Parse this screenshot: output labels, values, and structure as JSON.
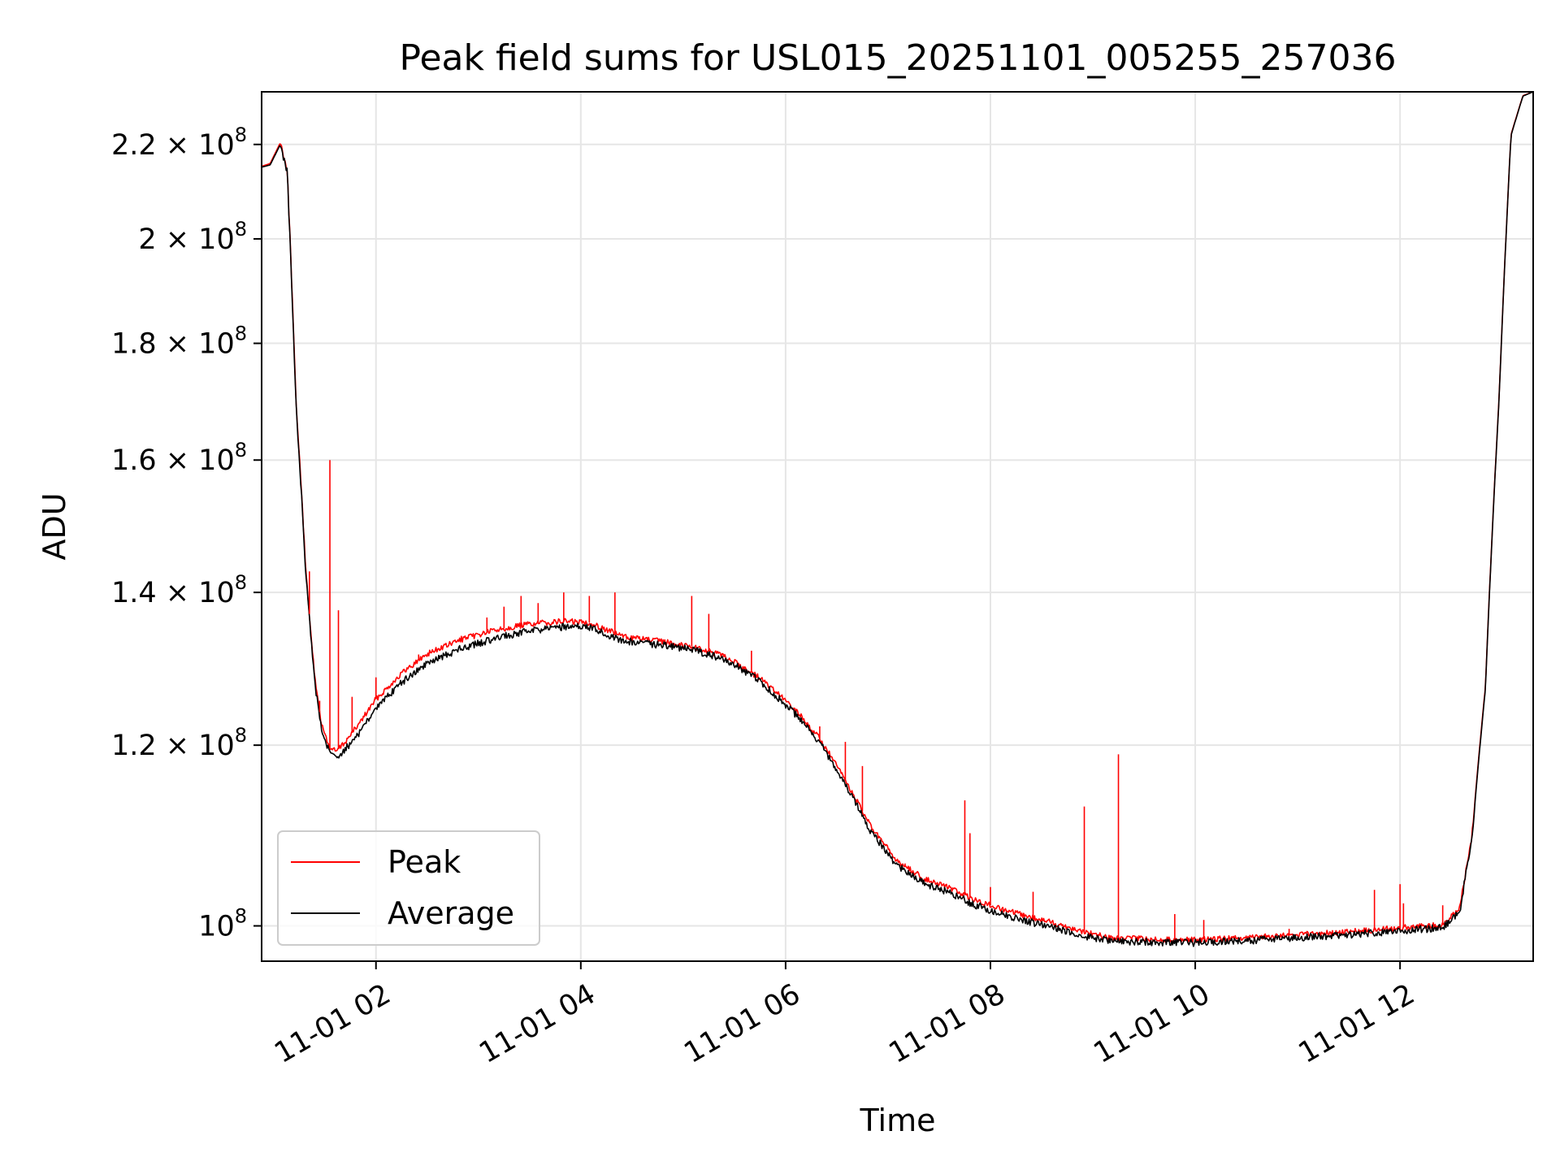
{
  "chart_data": {
    "type": "line",
    "title": "Peak field sums for USL015_20251101_005255_257036",
    "xlabel": "Time",
    "ylabel": "ADU",
    "yscale": "log",
    "xlim": [
      "2025-11-01 00:53",
      "2025-11-01 13:18"
    ],
    "ylim": [
      96500000,
      232000000
    ],
    "grid": true,
    "legend_position": "lower-left",
    "x_ticks": [
      "11-01 02",
      "11-01 04",
      "11-01 06",
      "11-01 08",
      "11-01 10",
      "11-01 12"
    ],
    "x_tick_values": [
      "2025-11-01 02:00",
      "2025-11-01 04:00",
      "2025-11-01 06:00",
      "2025-11-01 08:00",
      "2025-11-01 10:00",
      "2025-11-01 12:00"
    ],
    "y_ticks": [
      {
        "value": 100000000,
        "mant": "",
        "exp": "8"
      },
      {
        "value": 120000000,
        "mant": "1.2",
        "exp": "8"
      },
      {
        "value": 140000000,
        "mant": "1.4",
        "exp": "8"
      },
      {
        "value": 160000000,
        "mant": "1.6",
        "exp": "8"
      },
      {
        "value": 180000000,
        "mant": "1.8",
        "exp": "8"
      },
      {
        "value": 200000000,
        "mant": "2",
        "exp": "8"
      },
      {
        "value": 220000000,
        "mant": "2.2",
        "exp": "8"
      }
    ],
    "series": [
      {
        "name": "Average",
        "color": "#000000",
        "x": [
          "2025-11-01 00:53",
          "2025-11-01 00:58",
          "2025-11-01 01:04",
          "2025-11-01 01:08",
          "2025-11-01 01:13",
          "2025-11-01 01:19",
          "2025-11-01 01:24",
          "2025-11-01 01:28",
          "2025-11-01 01:33",
          "2025-11-01 01:37",
          "2025-11-01 01:42",
          "2025-11-01 01:50",
          "2025-11-01 02:00",
          "2025-11-01 02:15",
          "2025-11-01 02:30",
          "2025-11-01 02:50",
          "2025-11-01 03:10",
          "2025-11-01 03:30",
          "2025-11-01 03:50",
          "2025-11-01 04:05",
          "2025-11-01 04:25",
          "2025-11-01 04:45",
          "2025-11-01 05:05",
          "2025-11-01 05:25",
          "2025-11-01 05:45",
          "2025-11-01 06:05",
          "2025-11-01 06:20",
          "2025-11-01 06:35",
          "2025-11-01 06:50",
          "2025-11-01 07:05",
          "2025-11-01 07:20",
          "2025-11-01 07:35",
          "2025-11-01 07:50",
          "2025-11-01 08:10",
          "2025-11-01 08:35",
          "2025-11-01 08:55",
          "2025-11-01 09:10",
          "2025-11-01 09:30",
          "2025-11-01 10:00",
          "2025-11-01 10:30",
          "2025-11-01 11:00",
          "2025-11-01 11:30",
          "2025-11-01 12:00",
          "2025-11-01 12:25",
          "2025-11-01 12:35",
          "2025-11-01 12:42",
          "2025-11-01 12:50",
          "2025-11-01 12:58",
          "2025-11-01 13:05",
          "2025-11-01 13:12",
          "2025-11-01 13:18"
        ],
        "y": [
          215000000,
          215500000,
          220000000,
          214000000,
          170000000,
          142000000,
          128000000,
          122000000,
          119000000,
          118500000,
          119500000,
          121500000,
          124500000,
          127800000,
          130400000,
          132300000,
          133700000,
          134600000,
          135200000,
          135200000,
          133300000,
          132800000,
          132200000,
          130800000,
          128000000,
          124000000,
          120300000,
          115300000,
          110000000,
          106300000,
          104500000,
          103500000,
          102200000,
          101000000,
          99900000,
          99000000,
          98500000,
          98400000,
          98300000,
          98500000,
          98800000,
          99100000,
          99500000,
          99800000,
          101500000,
          109000000,
          127000000,
          170000000,
          222000000,
          231000000,
          232000000
        ]
      },
      {
        "name": "Peak",
        "color": "#ff0000",
        "x": [
          "2025-11-01 00:53",
          "2025-11-01 00:58",
          "2025-11-01 01:04",
          "2025-11-01 01:08",
          "2025-11-01 01:13",
          "2025-11-01 01:19",
          "2025-11-01 01:24",
          "2025-11-01 01:28",
          "2025-11-01 01:33",
          "2025-11-01 01:37",
          "2025-11-01 01:42",
          "2025-11-01 01:50",
          "2025-11-01 02:00",
          "2025-11-01 02:15",
          "2025-11-01 02:30",
          "2025-11-01 02:50",
          "2025-11-01 03:10",
          "2025-11-01 03:30",
          "2025-11-01 03:50",
          "2025-11-01 04:05",
          "2025-11-01 04:25",
          "2025-11-01 04:45",
          "2025-11-01 05:05",
          "2025-11-01 05:25",
          "2025-11-01 05:45",
          "2025-11-01 06:05",
          "2025-11-01 06:20",
          "2025-11-01 06:35",
          "2025-11-01 06:50",
          "2025-11-01 07:05",
          "2025-11-01 07:20",
          "2025-11-01 07:35",
          "2025-11-01 07:50",
          "2025-11-01 08:10",
          "2025-11-01 08:35",
          "2025-11-01 08:55",
          "2025-11-01 09:10",
          "2025-11-01 09:30",
          "2025-11-01 10:00",
          "2025-11-01 10:30",
          "2025-11-01 11:00",
          "2025-11-01 11:30",
          "2025-11-01 12:00",
          "2025-11-01 12:25",
          "2025-11-01 12:35",
          "2025-11-01 12:42",
          "2025-11-01 12:50",
          "2025-11-01 12:58",
          "2025-11-01 13:05",
          "2025-11-01 13:12",
          "2025-11-01 13:18"
        ],
        "y": [
          215200000,
          215800000,
          220400000,
          214500000,
          170600000,
          142600000,
          128600000,
          122600000,
          119600000,
          119300000,
          120400000,
          122600000,
          125700000,
          129000000,
          131600000,
          133500000,
          134800000,
          135600000,
          136000000,
          135800000,
          133900000,
          133300000,
          132600000,
          131200000,
          128400000,
          124500000,
          120800000,
          115800000,
          110500000,
          106800000,
          105000000,
          104000000,
          102700000,
          101500000,
          100400000,
          99400000,
          98800000,
          98700000,
          98600000,
          98800000,
          99100000,
          99400000,
          99800000,
          100100000,
          101800000,
          109300000,
          127300000,
          170300000,
          222200000,
          231100000,
          232000000
        ]
      }
    ],
    "peak_spikes": {
      "x": [
        "2025-11-01 01:21",
        "2025-11-01 01:27",
        "2025-11-01 01:33",
        "2025-11-01 01:38",
        "2025-11-01 01:46",
        "2025-11-01 02:00",
        "2025-11-01 02:25",
        "2025-11-01 02:50",
        "2025-11-01 03:05",
        "2025-11-01 03:15",
        "2025-11-01 03:25",
        "2025-11-01 03:35",
        "2025-11-01 03:50",
        "2025-11-01 04:05",
        "2025-11-01 04:20",
        "2025-11-01 05:05",
        "2025-11-01 05:15",
        "2025-11-01 05:40",
        "2025-11-01 06:20",
        "2025-11-01 06:35",
        "2025-11-01 06:45",
        "2025-11-01 07:10",
        "2025-11-01 07:45",
        "2025-11-01 07:48",
        "2025-11-01 08:00",
        "2025-11-01 08:25",
        "2025-11-01 08:55",
        "2025-11-01 09:15",
        "2025-11-01 09:48",
        "2025-11-01 10:05",
        "2025-11-01 10:55",
        "2025-11-01 11:45",
        "2025-11-01 12:00",
        "2025-11-01 12:02",
        "2025-11-01 12:25"
      ],
      "y": [
        143000000,
        125500000,
        160000000,
        137500000,
        126000000,
        128500000,
        131500000,
        134000000,
        136500000,
        138000000,
        139500000,
        138500000,
        140000000,
        139500000,
        140000000,
        139500000,
        137000000,
        132000000,
        122300000,
        120400000,
        117500000,
        106500000,
        113500000,
        109800000,
        104000000,
        103500000,
        112800000,
        118900000,
        101200000,
        100600000,
        99700000,
        103700000,
        104300000,
        102300000,
        102100000
      ]
    }
  }
}
